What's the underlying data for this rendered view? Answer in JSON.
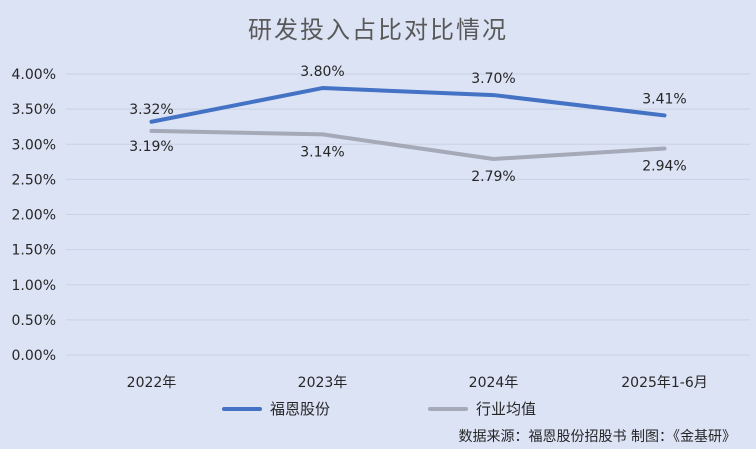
{
  "chart_data": {
    "type": "line",
    "title": "研发投入占比对比情况",
    "categories": [
      "2022年",
      "2023年",
      "2024年",
      "2025年1-6月"
    ],
    "y_ticks": [
      "0.00%",
      "0.50%",
      "1.00%",
      "1.50%",
      "2.00%",
      "2.50%",
      "3.00%",
      "3.50%",
      "4.00%"
    ],
    "ylim": [
      0,
      4.0
    ],
    "unit": "%",
    "grid": true,
    "legend_position": "bottom",
    "series": [
      {
        "name": "福恩股份",
        "values": [
          3.32,
          3.8,
          3.7,
          3.41
        ],
        "labels": [
          "3.32%",
          "3.80%",
          "3.70%",
          "3.41%"
        ],
        "color": "#4472c4"
      },
      {
        "name": "行业均值",
        "values": [
          3.19,
          3.14,
          2.79,
          2.94
        ],
        "labels": [
          "3.19%",
          "3.14%",
          "2.79%",
          "2.94%"
        ],
        "color": "#a5a9b8"
      }
    ]
  },
  "source_note": "数据来源：福恩股份招股书    制图：《金基研》"
}
